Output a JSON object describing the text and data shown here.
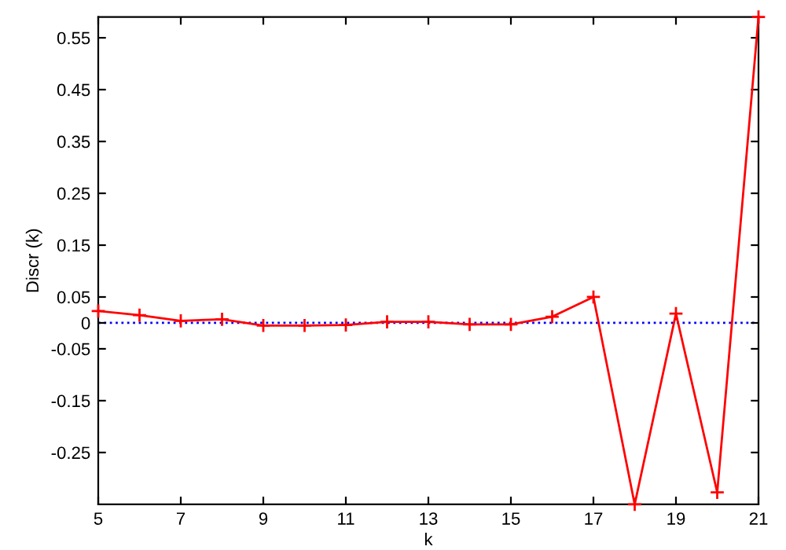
{
  "chart_data": {
    "type": "line",
    "xlabel": "k",
    "ylabel": "Discr (k)",
    "x": [
      5,
      6,
      7,
      8,
      9,
      10,
      11,
      12,
      13,
      14,
      15,
      16,
      17,
      18,
      19,
      20,
      21
    ],
    "series": [
      {
        "color": "#ff0000",
        "values": [
          0.023,
          0.015,
          0.004,
          0.007,
          -0.005,
          -0.005,
          -0.004,
          0.002,
          0.002,
          -0.003,
          -0.003,
          0.012,
          0.05,
          -0.35,
          0.018,
          -0.327,
          0.59
        ]
      }
    ],
    "marker": "cross",
    "line_style": "solid",
    "grid": false,
    "legend": false,
    "xlim": [
      5,
      21
    ],
    "xticks": [
      5,
      7,
      9,
      11,
      13,
      15,
      17,
      19,
      21
    ],
    "ylim": [
      -0.35,
      0.59
    ],
    "yticks": [
      0.55,
      0.45,
      0.35,
      0.25,
      0.15,
      0.05,
      0,
      -0.05,
      -0.15,
      -0.25
    ],
    "ref_lines": [
      {
        "axis": "y",
        "value": 0,
        "color": "#0000ff",
        "line_style": "dotted"
      }
    ]
  }
}
